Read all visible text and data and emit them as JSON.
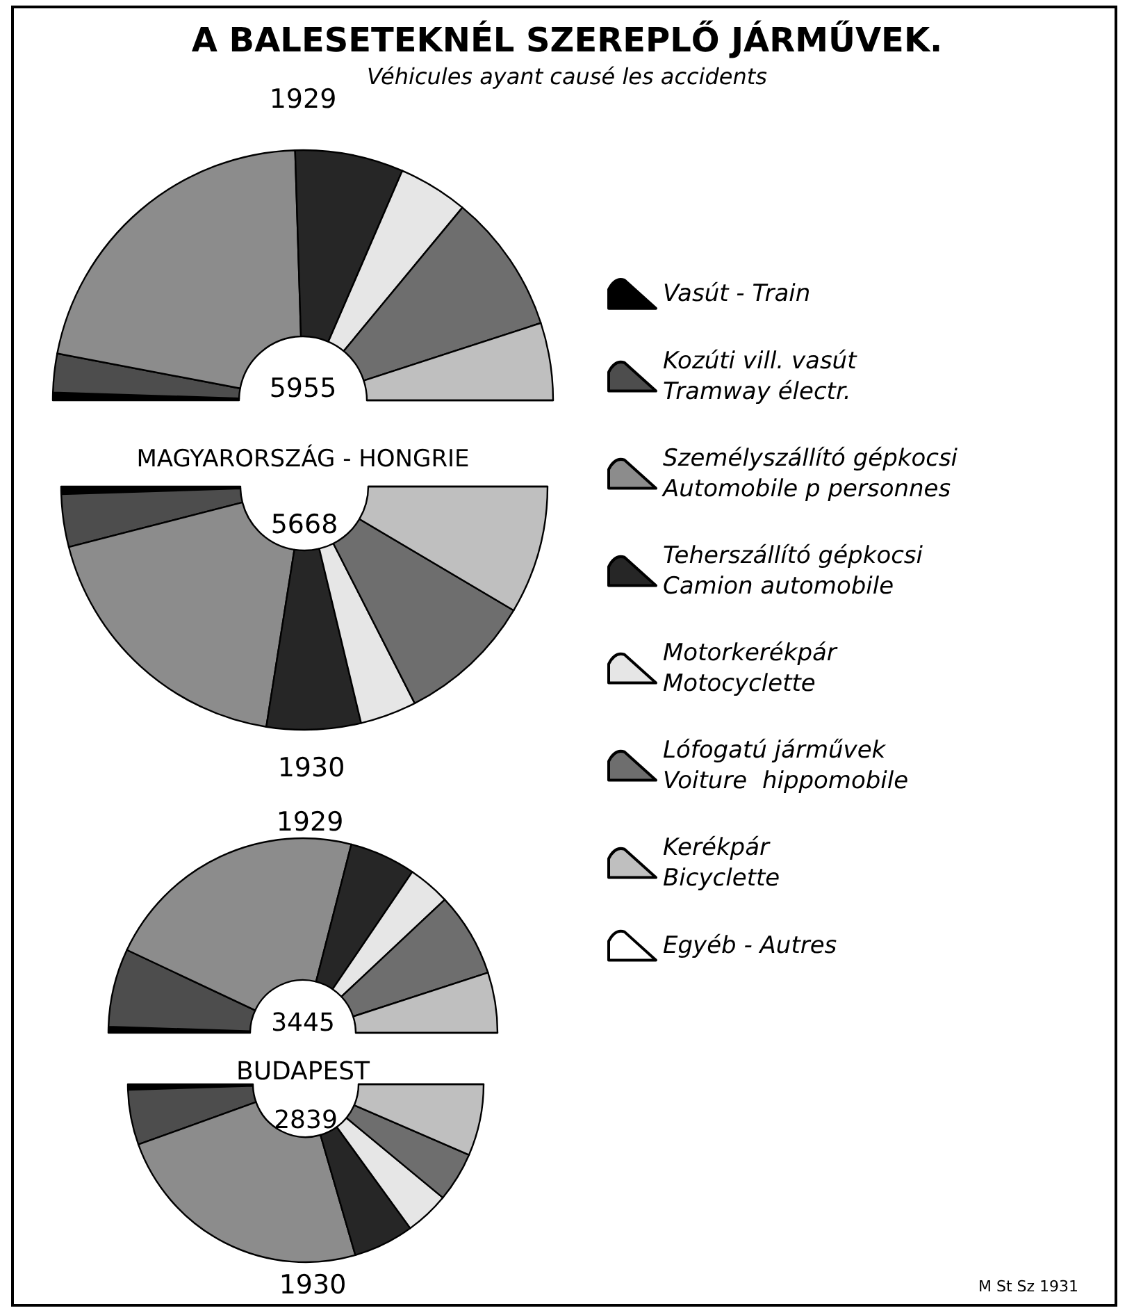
{
  "chart_data": [
    {
      "type": "donut",
      "title": "A BALESETEKNÉL SZEREPLŐ JÁRMŰVEK.",
      "subtitle": "Véhicules ayant causé les accidents",
      "categories": [
        "Vasút - Train",
        "Kozúti vill. vasút\nTramway électr.",
        "Személyszállító gépkocsi\nAutomobile p personnes",
        "Teherszállító gépkocsi\nCamion automobile",
        "Motorkerékpár\nMotocyclette",
        "Lófogatú járművek\nVoiture  hippomobile",
        "Kerékpár\nBicyclette",
        "Egyéb - Autres"
      ],
      "values": [
        1,
        5,
        43,
        14,
        9,
        18,
        10,
        0
      ],
      "colors": [
        "#000000",
        "#4d4d4d",
        "#8c8c8c",
        "#262626",
        "#e6e6e6",
        "#6e6e6e",
        "#bfbfbf",
        "#ffffff"
      ],
      "annotations": [
        "1929",
        "5955",
        "MAGYARORSZÁG - HONGRIE"
      ],
      "legend": "right"
    },
    {
      "type": "donut",
      "title": "1930",
      "categories": [
        null,
        null,
        null,
        null,
        null,
        null,
        null,
        null
      ],
      "values": [
        1,
        7,
        37,
        12.5,
        7.5,
        18,
        17,
        0
      ],
      "colors": [
        "#000000",
        "#4d4d4d",
        "#8c8c8c",
        "#262626",
        "#e6e6e6",
        "#6e6e6e",
        "#bfbfbf",
        "#ffffff"
      ],
      "annotations": [
        "5668"
      ]
    },
    {
      "type": "donut",
      "title": "1929",
      "categories": [
        null,
        null,
        null,
        null,
        null,
        null,
        null,
        null
      ],
      "values": [
        1,
        13,
        44,
        11,
        7,
        14,
        10,
        0
      ],
      "colors": [
        "#000000",
        "#4d4d4d",
        "#8c8c8c",
        "#262626",
        "#e6e6e6",
        "#6e6e6e",
        "#bfbfbf",
        "#ffffff"
      ],
      "annotations": [
        "3445",
        "BUDAPEST"
      ]
    },
    {
      "type": "donut",
      "title": "1930",
      "categories": [
        null,
        null,
        null,
        null,
        null,
        null,
        null,
        null
      ],
      "values": [
        1,
        10,
        48,
        11,
        8,
        9,
        13,
        0
      ],
      "colors": [
        "#000000",
        "#4d4d4d",
        "#8c8c8c",
        "#262626",
        "#e6e6e6",
        "#6e6e6e",
        "#bfbfbf",
        "#ffffff"
      ],
      "annotations": [
        "2839",
        "M St Sz 1931"
      ]
    }
  ]
}
